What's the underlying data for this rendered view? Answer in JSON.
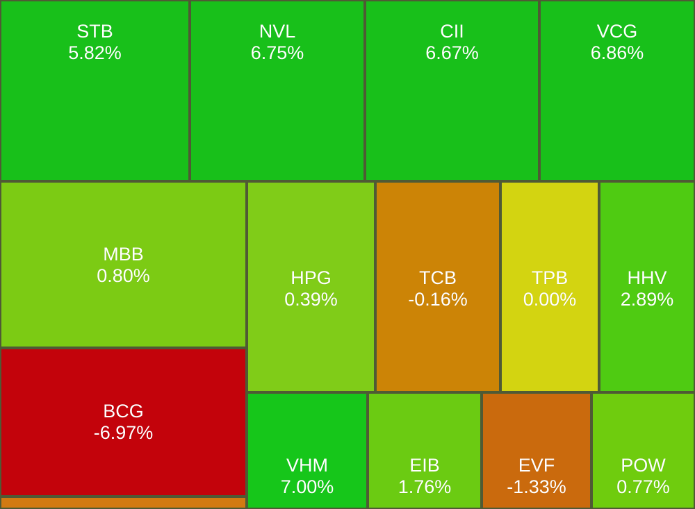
{
  "chart_data": {
    "type": "treemap",
    "tiles": [
      {
        "ticker": "STB",
        "change": "5.82%",
        "color": "#18c01a"
      },
      {
        "ticker": "NVL",
        "change": "6.75%",
        "color": "#18c01a"
      },
      {
        "ticker": "CII",
        "change": "6.67%",
        "color": "#18c01a"
      },
      {
        "ticker": "VCG",
        "change": "6.86%",
        "color": "#18c01a"
      },
      {
        "ticker": "MBB",
        "change": "0.80%",
        "color": "#7ccb14"
      },
      {
        "ticker": "HPG",
        "change": "0.39%",
        "color": "#80cc18"
      },
      {
        "ticker": "TCB",
        "change": "-0.16%",
        "color": "#cc8406"
      },
      {
        "ticker": "TPB",
        "change": "0.00%",
        "color": "#d3d411"
      },
      {
        "ticker": "HHV",
        "change": "2.89%",
        "color": "#4fcb12"
      },
      {
        "ticker": "BCG",
        "change": "-6.97%",
        "color": "#c3030b"
      },
      {
        "ticker": "VHM",
        "change": "7.00%",
        "color": "#16c61a"
      },
      {
        "ticker": "EIB",
        "change": "1.76%",
        "color": "#6bcb12"
      },
      {
        "ticker": "EVF",
        "change": "-1.33%",
        "color": "#ca6a0d"
      },
      {
        "ticker": "POW",
        "change": "0.77%",
        "color": "#6fcc0e"
      },
      {
        "ticker": "",
        "change": "",
        "color": "#d27a12"
      }
    ]
  }
}
